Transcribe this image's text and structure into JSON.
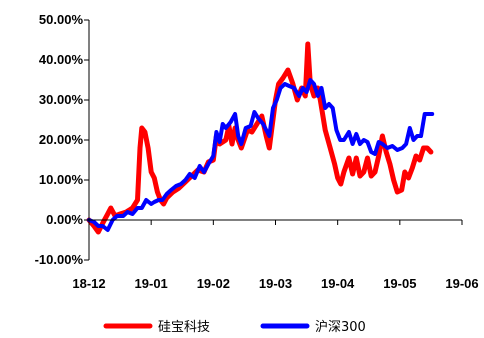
{
  "chart_data": {
    "type": "line",
    "title": "",
    "xlabel": "",
    "ylabel": "",
    "x_ticks": [
      "18-12",
      "19-01",
      "19-02",
      "19-03",
      "19-04",
      "19-05",
      "19-06"
    ],
    "x_range": [
      0,
      6
    ],
    "y_ticks": [
      "-10.00%",
      "0.00%",
      "10.00%",
      "20.00%",
      "30.00%",
      "40.00%",
      "50.00%"
    ],
    "ylim": [
      -10,
      50
    ],
    "grid": false,
    "legend_position": "bottom",
    "series": [
      {
        "name": "硅宝科技",
        "color": "#ff0000",
        "points": [
          [
            0.0,
            0.0
          ],
          [
            0.08,
            -1.5
          ],
          [
            0.15,
            -3.0
          ],
          [
            0.22,
            -0.8
          ],
          [
            0.3,
            1.5
          ],
          [
            0.35,
            3.0
          ],
          [
            0.42,
            1.0
          ],
          [
            0.5,
            1.5
          ],
          [
            0.6,
            2.0
          ],
          [
            0.7,
            3.0
          ],
          [
            0.78,
            5.0
          ],
          [
            0.82,
            18.0
          ],
          [
            0.85,
            23.0
          ],
          [
            0.9,
            22.0
          ],
          [
            0.95,
            18.0
          ],
          [
            1.0,
            12.0
          ],
          [
            1.05,
            10.5
          ],
          [
            1.1,
            7.0
          ],
          [
            1.15,
            5.0
          ],
          [
            1.2,
            4.0
          ],
          [
            1.25,
            5.5
          ],
          [
            1.35,
            7.0
          ],
          [
            1.45,
            8.0
          ],
          [
            1.55,
            9.5
          ],
          [
            1.65,
            11.0
          ],
          [
            1.75,
            12.5
          ],
          [
            1.85,
            12.0
          ],
          [
            1.92,
            14.5
          ],
          [
            2.0,
            15.0
          ],
          [
            2.05,
            21.0
          ],
          [
            2.1,
            19.0
          ],
          [
            2.2,
            20.0
          ],
          [
            2.25,
            23.5
          ],
          [
            2.3,
            19.0
          ],
          [
            2.35,
            23.0
          ],
          [
            2.4,
            20.0
          ],
          [
            2.45,
            18.0
          ],
          [
            2.55,
            22.5
          ],
          [
            2.62,
            22.0
          ],
          [
            2.7,
            24.0
          ],
          [
            2.78,
            26.0
          ],
          [
            2.85,
            21.0
          ],
          [
            2.9,
            18.0
          ],
          [
            2.95,
            24.0
          ],
          [
            3.0,
            30.0
          ],
          [
            3.05,
            34.0
          ],
          [
            3.12,
            35.5
          ],
          [
            3.2,
            37.5
          ],
          [
            3.28,
            34.0
          ],
          [
            3.35,
            30.0
          ],
          [
            3.42,
            33.0
          ],
          [
            3.48,
            31.0
          ],
          [
            3.52,
            44.0
          ],
          [
            3.56,
            34.0
          ],
          [
            3.62,
            31.0
          ],
          [
            3.68,
            33.0
          ],
          [
            3.72,
            30.0
          ],
          [
            3.8,
            22.5
          ],
          [
            3.88,
            18.0
          ],
          [
            3.95,
            14.0
          ],
          [
            4.0,
            10.5
          ],
          [
            4.05,
            9.0
          ],
          [
            4.1,
            12.0
          ],
          [
            4.18,
            15.5
          ],
          [
            4.24,
            11.5
          ],
          [
            4.3,
            15.5
          ],
          [
            4.36,
            11.0
          ],
          [
            4.42,
            12.0
          ],
          [
            4.48,
            15.5
          ],
          [
            4.54,
            11.0
          ],
          [
            4.6,
            12.0
          ],
          [
            4.66,
            16.0
          ],
          [
            4.72,
            21.0
          ],
          [
            4.78,
            17.0
          ],
          [
            4.84,
            14.0
          ],
          [
            4.9,
            10.0
          ],
          [
            4.96,
            7.0
          ],
          [
            5.03,
            7.5
          ],
          [
            5.08,
            12.0
          ],
          [
            5.14,
            10.5
          ],
          [
            5.2,
            13.0
          ],
          [
            5.26,
            16.0
          ],
          [
            5.32,
            15.0
          ],
          [
            5.38,
            18.0
          ],
          [
            5.44,
            18.0
          ],
          [
            5.5,
            17.0
          ]
        ]
      },
      {
        "name": "沪深300",
        "color": "#0000ff",
        "points": [
          [
            0.0,
            0.0
          ],
          [
            0.08,
            -0.5
          ],
          [
            0.15,
            -1.5
          ],
          [
            0.22,
            -1.5
          ],
          [
            0.3,
            -2.5
          ],
          [
            0.38,
            0.0
          ],
          [
            0.45,
            1.0
          ],
          [
            0.55,
            1.0
          ],
          [
            0.62,
            2.0
          ],
          [
            0.7,
            1.5
          ],
          [
            0.78,
            3.0
          ],
          [
            0.85,
            3.0
          ],
          [
            0.92,
            5.0
          ],
          [
            1.0,
            4.0
          ],
          [
            1.05,
            4.5
          ],
          [
            1.12,
            5.0
          ],
          [
            1.18,
            5.0
          ],
          [
            1.25,
            6.5
          ],
          [
            1.32,
            7.5
          ],
          [
            1.4,
            8.5
          ],
          [
            1.48,
            9.0
          ],
          [
            1.55,
            10.0
          ],
          [
            1.62,
            11.5
          ],
          [
            1.7,
            10.5
          ],
          [
            1.78,
            13.5
          ],
          [
            1.85,
            12.0
          ],
          [
            1.92,
            14.0
          ],
          [
            2.0,
            16.0
          ],
          [
            2.05,
            22.0
          ],
          [
            2.1,
            19.5
          ],
          [
            2.15,
            24.0
          ],
          [
            2.2,
            23.0
          ],
          [
            2.28,
            24.5
          ],
          [
            2.35,
            26.5
          ],
          [
            2.4,
            21.0
          ],
          [
            2.45,
            19.0
          ],
          [
            2.52,
            23.0
          ],
          [
            2.6,
            23.5
          ],
          [
            2.66,
            27.0
          ],
          [
            2.72,
            25.5
          ],
          [
            2.8,
            24.0
          ],
          [
            2.85,
            22.5
          ],
          [
            2.9,
            21.0
          ],
          [
            2.96,
            28.0
          ],
          [
            3.02,
            30.0
          ],
          [
            3.08,
            33.0
          ],
          [
            3.15,
            34.0
          ],
          [
            3.22,
            33.5
          ],
          [
            3.3,
            33.0
          ],
          [
            3.38,
            31.0
          ],
          [
            3.44,
            33.0
          ],
          [
            3.5,
            32.0
          ],
          [
            3.56,
            35.0
          ],
          [
            3.62,
            34.0
          ],
          [
            3.68,
            31.0
          ],
          [
            3.74,
            33.0
          ],
          [
            3.8,
            28.0
          ],
          [
            3.86,
            29.0
          ],
          [
            3.92,
            28.0
          ],
          [
            3.98,
            22.5
          ],
          [
            4.04,
            20.0
          ],
          [
            4.1,
            20.0
          ],
          [
            4.18,
            22.0
          ],
          [
            4.24,
            19.0
          ],
          [
            4.3,
            21.5
          ],
          [
            4.36,
            19.0
          ],
          [
            4.42,
            20.0
          ],
          [
            4.48,
            19.5
          ],
          [
            4.54,
            17.0
          ],
          [
            4.6,
            16.5
          ],
          [
            4.66,
            19.5
          ],
          [
            4.72,
            19.0
          ],
          [
            4.8,
            18.0
          ],
          [
            4.88,
            18.5
          ],
          [
            4.96,
            17.5
          ],
          [
            5.04,
            18.0
          ],
          [
            5.1,
            19.0
          ],
          [
            5.16,
            23.0
          ],
          [
            5.22,
            20.0
          ],
          [
            5.28,
            21.0
          ],
          [
            5.34,
            21.0
          ],
          [
            5.4,
            26.5
          ],
          [
            5.46,
            26.5
          ],
          [
            5.52,
            26.5
          ]
        ]
      }
    ]
  }
}
